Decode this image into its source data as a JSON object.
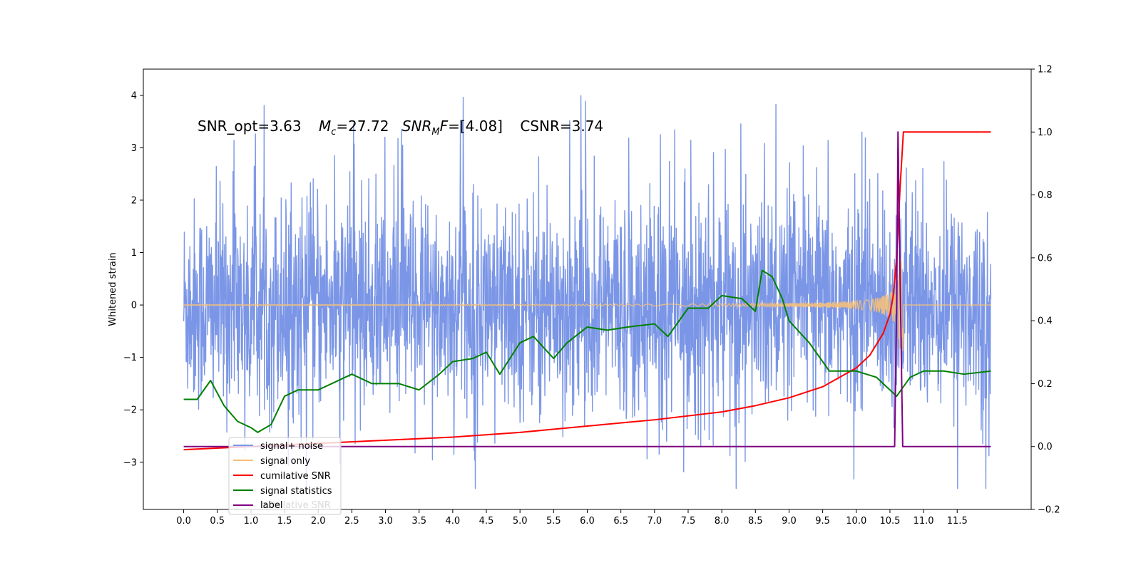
{
  "chart_data": {
    "type": "line",
    "title": "",
    "annotation": {
      "snr_opt": "SNR_opt=3.63",
      "mc_symbol": "M",
      "mc_sub": "c",
      "mc_value": "=27.72",
      "snr_mf_symbol": "SNR",
      "snr_mf_sub": "M",
      "snr_mf_tail": "F",
      "snr_mf_value": "=[4.08]",
      "csnr": "CSNR=3.74"
    },
    "xlabel": "",
    "ylabel_left": "Whitened strain",
    "ylabel_right": "",
    "xlim": [
      -0.6,
      12.6
    ],
    "ylim_left": [
      -3.9,
      4.5
    ],
    "ylim_right": [
      -0.2,
      1.2
    ],
    "x_ticks": [
      "0.0",
      "0.5",
      "1.0",
      "1.5",
      "2.0",
      "2.5",
      "3.0",
      "3.5",
      "4.0",
      "4.5",
      "5.0",
      "5.5",
      "6.0",
      "6.5",
      "7.0",
      "7.5",
      "8.0",
      "8.5",
      "9.0",
      "9.5",
      "10.0",
      "10.5",
      "11.0",
      "11.5"
    ],
    "y_left_ticks": [
      "4",
      "3",
      "2",
      "1",
      "0",
      "−1",
      "−2",
      "−3"
    ],
    "y_left_tick_values": [
      4,
      3,
      2,
      1,
      0,
      -1,
      -2,
      -3
    ],
    "y_right_ticks": [
      "1.2",
      "1.0",
      "0.8",
      "0.6",
      "0.4",
      "0.2",
      "0.0",
      "−0.2"
    ],
    "y_right_tick_values": [
      1.2,
      1.0,
      0.8,
      0.6,
      0.4,
      0.2,
      0.0,
      -0.2
    ],
    "legend": {
      "placement": "lower-left",
      "entries": [
        "signal+ noise",
        "signal only",
        "cumilative SNR",
        "signal statistics",
        "label"
      ],
      "ghost_text": "cumilative SNR"
    },
    "colors": {
      "signal_noise": "#7b96e6",
      "signal_only": "#f5c07a",
      "cumulative_snr": "#ff0000",
      "signal_statistics": "#008000",
      "label": "#800080"
    },
    "series": [
      {
        "name": "signal+ noise",
        "axis": "left",
        "x_range": [
          0,
          12.0
        ],
        "description_value": "whitened noise, approx range -3.5 to 4.1"
      },
      {
        "name": "signal only",
        "axis": "left",
        "x_range": [
          0,
          12.0
        ],
        "chirp_peak_x": 10.65,
        "peak_amplitude": 0.9
      },
      {
        "name": "cumilative SNR",
        "axis": "right",
        "x": [
          0.0,
          1.0,
          2.0,
          3.0,
          4.0,
          5.0,
          6.0,
          7.0,
          8.0,
          8.5,
          9.0,
          9.5,
          10.0,
          10.2,
          10.4,
          10.5,
          10.55,
          10.6,
          10.65,
          10.7,
          11.0,
          12.0
        ],
        "values": [
          -0.01,
          0.0,
          0.01,
          0.02,
          0.03,
          0.045,
          0.065,
          0.085,
          0.11,
          0.13,
          0.155,
          0.19,
          0.25,
          0.29,
          0.36,
          0.42,
          0.48,
          0.6,
          0.82,
          1.0,
          1.0,
          1.0
        ]
      },
      {
        "name": "signal statistics",
        "axis": "right",
        "x": [
          0.0,
          0.2,
          0.4,
          0.6,
          0.8,
          1.0,
          1.1,
          1.3,
          1.5,
          1.7,
          2.0,
          2.2,
          2.5,
          2.8,
          3.0,
          3.2,
          3.5,
          3.8,
          4.0,
          4.3,
          4.5,
          4.7,
          5.0,
          5.2,
          5.5,
          5.7,
          6.0,
          6.3,
          6.6,
          7.0,
          7.2,
          7.5,
          7.8,
          8.0,
          8.3,
          8.5,
          8.6,
          8.75,
          8.9,
          9.0,
          9.3,
          9.6,
          10.0,
          10.3,
          10.6,
          10.8,
          11.0,
          11.3,
          11.6,
          12.0
        ],
        "values": [
          0.15,
          0.15,
          0.21,
          0.13,
          0.08,
          0.06,
          0.045,
          0.07,
          0.16,
          0.18,
          0.18,
          0.2,
          0.23,
          0.2,
          0.2,
          0.2,
          0.18,
          0.23,
          0.27,
          0.28,
          0.3,
          0.23,
          0.33,
          0.35,
          0.28,
          0.33,
          0.38,
          0.37,
          0.38,
          0.39,
          0.35,
          0.44,
          0.44,
          0.48,
          0.47,
          0.43,
          0.56,
          0.54,
          0.47,
          0.4,
          0.33,
          0.24,
          0.24,
          0.22,
          0.16,
          0.22,
          0.24,
          0.24,
          0.23,
          0.24
        ]
      },
      {
        "name": "label",
        "axis": "right",
        "x": [
          0.0,
          10.57,
          10.6,
          10.62,
          10.65,
          10.69,
          12.0
        ],
        "values": [
          0.0,
          0.0,
          0.45,
          1.0,
          0.55,
          0.0,
          0.0
        ]
      }
    ]
  }
}
